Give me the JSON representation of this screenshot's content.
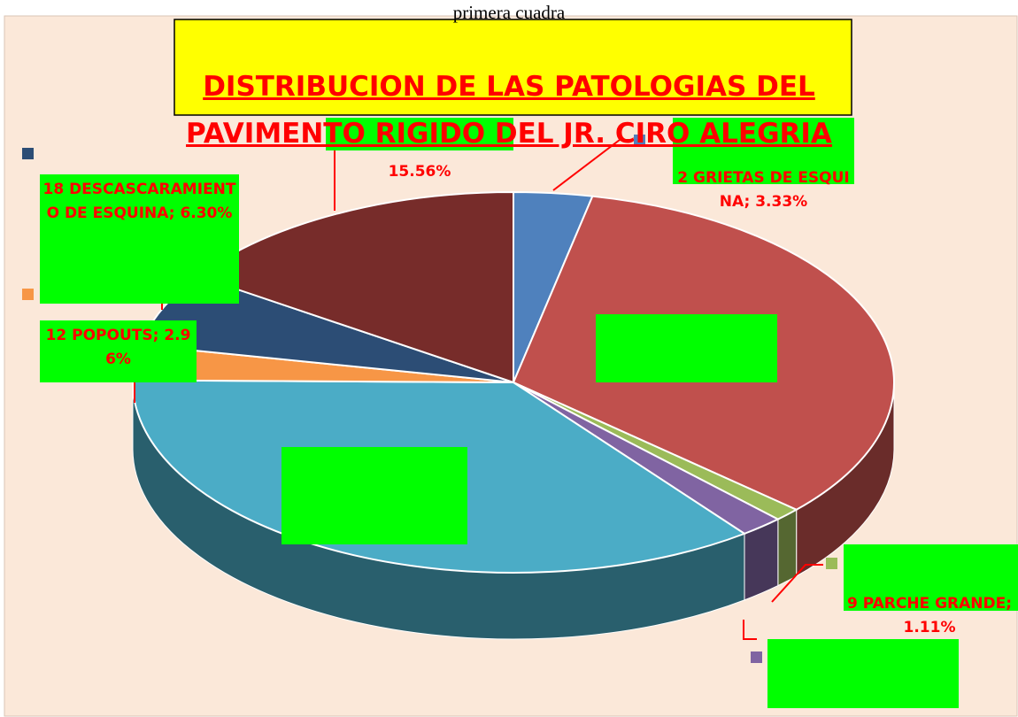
{
  "chart_data": {
    "type": "pie",
    "subtitle": "primera cuadra",
    "title": [
      "DISTRIBUCION DE LAS PATOLOGIAS DEL",
      "PAVIMENTO RIGIDO DEL JR. CIRO ALEGRIA"
    ],
    "values": [
      3.33,
      33.33,
      1.11,
      1.85,
      35.56,
      2.96,
      6.3,
      15.56
    ],
    "value_labels": [
      "2  GRIETAS DE ESQUINA; 3.33%",
      null,
      "9  PARCHE GRANDE; 1.11%",
      null,
      null,
      "12  POPOUTS; 2.96%",
      "18 DESCASCARAMIENTO DE ESQUINA; 6.30%",
      "15.56%"
    ],
    "colors": [
      "#4f81bd",
      "#c0504d",
      "#9bbb59",
      "#8064a2",
      "#4bacc6",
      "#f79646",
      "#2c4d75",
      "#772c2a"
    ]
  }
}
